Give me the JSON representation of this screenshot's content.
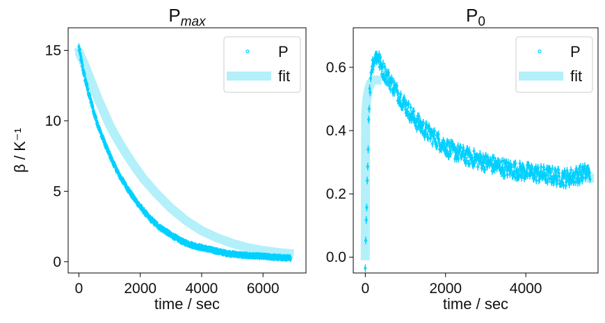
{
  "chart_data": [
    {
      "type": "scatter",
      "title": {
        "main": "P",
        "sub": "max"
      },
      "xlabel": "time / sec",
      "ylabel": "β / K⁻¹",
      "xlim": [
        -350,
        7400
      ],
      "ylim": [
        -0.8,
        16.6
      ],
      "xticks": [
        0,
        2000,
        4000,
        6000
      ],
      "xtick_labels": [
        "0",
        "2000",
        "4000",
        "6000"
      ],
      "yticks": [
        0,
        5,
        10,
        15
      ],
      "ytick_labels": [
        "0",
        "5",
        "10",
        "15"
      ],
      "legend": {
        "position": "top-right",
        "entries": [
          "P",
          "fit"
        ]
      },
      "colors": {
        "points": "#00d0ff",
        "fit": "#b3f0fa"
      },
      "series": [
        {
          "name": "P",
          "style": "markers-with-errorbars",
          "x": [
            0,
            100,
            200,
            300,
            400,
            500,
            700,
            900,
            1100,
            1300,
            1500,
            1700,
            2000,
            2300,
            2600,
            3000,
            3400,
            3800,
            4200,
            4800,
            5400,
            6000,
            6500,
            6900
          ],
          "y": [
            15.2,
            14.0,
            13.0,
            12.1,
            11.3,
            10.5,
            9.2,
            8.1,
            7.1,
            6.2,
            5.5,
            4.8,
            3.9,
            3.1,
            2.5,
            1.9,
            1.4,
            1.1,
            0.9,
            0.6,
            0.45,
            0.38,
            0.3,
            0.25
          ]
        },
        {
          "name": "fit",
          "style": "thick-line",
          "x": [
            -100,
            0,
            200,
            400,
            600,
            800,
            1000,
            1200,
            1500,
            1800,
            2100,
            2500,
            3000,
            3500,
            4000,
            4500,
            5000,
            5500,
            6000,
            6500,
            7000
          ],
          "y": [
            14.8,
            14.9,
            13.9,
            12.8,
            11.7,
            10.7,
            9.7,
            8.9,
            7.8,
            6.8,
            5.9,
            4.9,
            3.8,
            2.9,
            2.2,
            1.7,
            1.3,
            1.0,
            0.8,
            0.65,
            0.55
          ]
        }
      ]
    },
    {
      "type": "scatter",
      "title": {
        "main": "P",
        "sub": "0"
      },
      "xlabel": "time / sec",
      "ylabel": "",
      "xlim": [
        -300,
        5800
      ],
      "ylim": [
        -0.05,
        0.725
      ],
      "xticks": [
        0,
        2000,
        4000
      ],
      "xtick_labels": [
        "0",
        "2000",
        "4000"
      ],
      "yticks": [
        0.0,
        0.2,
        0.4,
        0.6
      ],
      "ytick_labels": [
        "0.0",
        "0.2",
        "0.4",
        "0.6"
      ],
      "legend": {
        "position": "top-right",
        "entries": [
          "P",
          "fit"
        ]
      },
      "colors": {
        "points": "#00d0ff",
        "fit": "#b3f0fa"
      },
      "series": [
        {
          "name": "P",
          "style": "markers-with-errorbars",
          "x": [
            0,
            30,
            60,
            100,
            150,
            200,
            300,
            400,
            600,
            800,
            1000,
            1200,
            1500,
            1800,
            2100,
            2500,
            3000,
            3500,
            4000,
            4500,
            5000,
            5300,
            5600
          ],
          "y": [
            -0.01,
            0.15,
            0.3,
            0.5,
            0.6,
            0.62,
            0.64,
            0.6,
            0.56,
            0.52,
            0.48,
            0.44,
            0.4,
            0.37,
            0.34,
            0.32,
            0.3,
            0.28,
            0.27,
            0.26,
            0.25,
            0.26,
            0.27
          ]
        },
        {
          "name": "fit",
          "style": "thick-line",
          "x": [
            0,
            5,
            10,
            40,
            80,
            130,
            200,
            300,
            400
          ],
          "y": [
            -0.01,
            0.3,
            0.45,
            0.5,
            0.53,
            0.55,
            0.56,
            0.56,
            0.56
          ]
        },
        {
          "name": "fit-tail",
          "style": "thick-line",
          "x": [
            5500,
            5700
          ],
          "y": [
            0.25,
            0.25
          ]
        }
      ]
    }
  ]
}
